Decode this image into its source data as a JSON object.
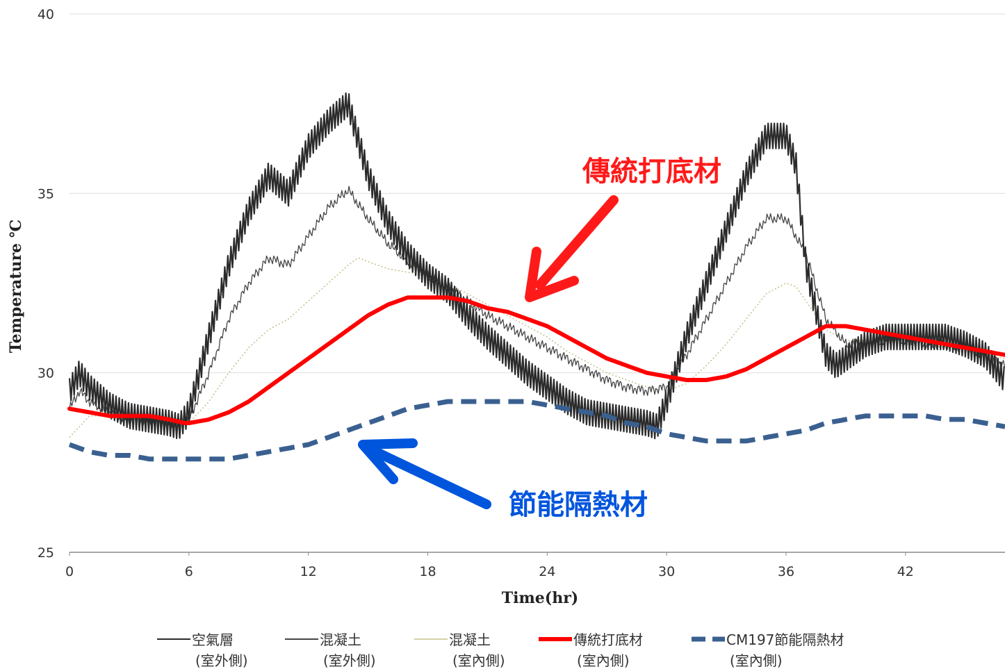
{
  "chart_data": {
    "type": "line",
    "title": "",
    "xlabel": "Time(hr)",
    "ylabel": "Temperature ℃",
    "xlim": [
      0,
      47
    ],
    "ylim": [
      25,
      40
    ],
    "x_ticks": [
      "0",
      "6",
      "12",
      "18",
      "24",
      "30",
      "36",
      "42"
    ],
    "y_ticks": [
      "40",
      "35",
      "30",
      "25"
    ],
    "grid": "horizontal",
    "legend_position": "bottom",
    "series": [
      {
        "name": "空氣層",
        "name_line2": "(室外側)",
        "color": "#2b2b2b",
        "style": "solid-oscillating",
        "oscillation": 0.7,
        "x": [
          0,
          0.5,
          1,
          2,
          3,
          4,
          5,
          5.5,
          6,
          7,
          8,
          9,
          10,
          11,
          12,
          13,
          14,
          15,
          16,
          17,
          18,
          19,
          20,
          21,
          22,
          23,
          24,
          25,
          26,
          27,
          28,
          29,
          29.5,
          30,
          31,
          32,
          33,
          34,
          35,
          36,
          36.5,
          37,
          38,
          38.5,
          39,
          40,
          41,
          42,
          43,
          44,
          45,
          46,
          47
        ],
        "y": [
          29.5,
          30.0,
          29.6,
          29.1,
          28.8,
          28.7,
          28.6,
          28.5,
          28.9,
          31.0,
          33.0,
          34.5,
          35.5,
          35.0,
          36.3,
          37.0,
          37.5,
          35.5,
          34.2,
          33.3,
          32.7,
          32.3,
          31.6,
          31.0,
          30.5,
          30.0,
          29.6,
          29.2,
          28.9,
          28.8,
          28.7,
          28.6,
          28.5,
          29.2,
          31.0,
          32.5,
          34.0,
          35.5,
          36.6,
          36.6,
          35.8,
          33.0,
          30.5,
          30.2,
          30.4,
          30.8,
          31.0,
          31.0,
          31.0,
          31.0,
          30.8,
          30.5,
          29.8
        ]
      },
      {
        "name": "混凝土",
        "name_line2": "(室外側)",
        "color": "#444444",
        "style": "thin-jitter",
        "oscillation": 0.22,
        "x": [
          0,
          0.5,
          1,
          2,
          3,
          4,
          5,
          6,
          7,
          8,
          9,
          10,
          11,
          12,
          13,
          14,
          15,
          16,
          17,
          18,
          19,
          20,
          21,
          22,
          23,
          24,
          25,
          26,
          27,
          28,
          29,
          30,
          31,
          32,
          33,
          34,
          35,
          36,
          37,
          38,
          39,
          40,
          41,
          42,
          43,
          44,
          45,
          46,
          47
        ],
        "y": [
          29.0,
          29.5,
          29.2,
          28.9,
          28.7,
          28.7,
          28.6,
          28.7,
          30.0,
          31.5,
          32.5,
          33.2,
          33.0,
          33.8,
          34.6,
          35.1,
          34.3,
          33.6,
          33.1,
          32.7,
          32.4,
          32.0,
          31.6,
          31.3,
          31.0,
          30.7,
          30.4,
          30.1,
          29.8,
          29.6,
          29.5,
          29.6,
          30.5,
          31.5,
          32.5,
          33.5,
          34.3,
          34.3,
          33.3,
          31.5,
          30.8,
          30.8,
          30.9,
          30.9,
          30.8,
          30.8,
          30.7,
          30.5,
          30.2
        ]
      },
      {
        "name": "混凝土",
        "name_line2": "(室內側)",
        "color": "#c9c08f",
        "style": "dotted",
        "oscillation": 0.05,
        "x": [
          0,
          1,
          2,
          3,
          4,
          5,
          6,
          7,
          8,
          9,
          10,
          11,
          12,
          13,
          14,
          14.5,
          15,
          16,
          17,
          18,
          19,
          20,
          21,
          22,
          23,
          24,
          25,
          26,
          27,
          28,
          29,
          30,
          31,
          32,
          33,
          34,
          35,
          36,
          36.5,
          37,
          38,
          39,
          40,
          41,
          42,
          43,
          44,
          45,
          46,
          47
        ],
        "y": [
          28.2,
          28.8,
          28.8,
          28.7,
          28.7,
          28.6,
          28.6,
          29.2,
          30.0,
          30.7,
          31.2,
          31.5,
          32.0,
          32.5,
          33.0,
          33.2,
          33.1,
          32.9,
          32.8,
          32.7,
          32.5,
          32.2,
          31.9,
          31.6,
          31.3,
          31.0,
          30.6,
          30.3,
          30.0,
          29.8,
          29.6,
          29.5,
          29.7,
          30.2,
          30.8,
          31.5,
          32.2,
          32.5,
          32.4,
          32.0,
          31.2,
          30.9,
          30.9,
          30.9,
          30.8,
          30.8,
          30.7,
          30.6,
          30.5,
          30.4
        ]
      },
      {
        "name": "傳統打底材",
        "name_line2": "(室內側)",
        "color": "#ff0000",
        "style": "thick-solid",
        "oscillation": 0.05,
        "x": [
          0,
          1,
          2,
          3,
          4,
          5,
          5.8,
          6,
          7,
          8,
          9,
          10,
          11,
          12,
          13,
          14,
          15,
          16,
          17,
          18,
          19,
          20,
          21,
          22,
          23,
          24,
          25,
          26,
          27,
          28,
          29,
          30,
          31,
          32,
          33,
          34,
          35,
          36,
          37,
          38,
          39,
          40,
          41,
          42,
          43,
          44,
          45,
          46,
          47
        ],
        "y": [
          29.0,
          28.9,
          28.8,
          28.8,
          28.8,
          28.7,
          28.6,
          28.6,
          28.7,
          28.9,
          29.2,
          29.6,
          30.0,
          30.4,
          30.8,
          31.2,
          31.6,
          31.9,
          32.1,
          32.1,
          32.1,
          32.0,
          31.8,
          31.7,
          31.5,
          31.3,
          31.0,
          30.7,
          30.4,
          30.2,
          30.0,
          29.9,
          29.8,
          29.8,
          29.9,
          30.1,
          30.4,
          30.7,
          31.0,
          31.3,
          31.3,
          31.2,
          31.1,
          31.0,
          30.9,
          30.8,
          30.7,
          30.6,
          30.5
        ]
      },
      {
        "name": "CM197節能隔熱材",
        "name_line2": "(室內側)",
        "color": "#3a6090",
        "style": "thick-dashed",
        "oscillation": 0.0,
        "x": [
          0,
          0.5,
          1,
          2,
          3,
          4,
          5,
          6,
          7,
          8,
          9,
          10,
          11,
          12,
          13,
          14,
          15,
          16,
          17,
          18,
          19,
          20,
          21,
          22,
          23,
          24,
          25,
          26,
          27,
          28,
          29,
          30,
          31,
          32,
          33,
          34,
          35,
          36,
          37,
          38,
          39,
          40,
          41,
          42,
          43,
          44,
          45,
          46,
          47
        ],
        "y": [
          28.0,
          27.9,
          27.8,
          27.7,
          27.7,
          27.6,
          27.6,
          27.6,
          27.6,
          27.6,
          27.7,
          27.8,
          27.9,
          28.0,
          28.2,
          28.4,
          28.6,
          28.8,
          29.0,
          29.1,
          29.2,
          29.2,
          29.2,
          29.2,
          29.2,
          29.1,
          29.0,
          28.9,
          28.8,
          28.6,
          28.5,
          28.3,
          28.2,
          28.1,
          28.1,
          28.1,
          28.2,
          28.3,
          28.4,
          28.6,
          28.7,
          28.8,
          28.8,
          28.8,
          28.8,
          28.7,
          28.7,
          28.6,
          28.5
        ]
      }
    ],
    "annotations": [
      {
        "text": "傳統打底材",
        "color": "#ff1a1a"
      },
      {
        "text": "節能隔熱材",
        "color": "#0055dd"
      }
    ]
  }
}
